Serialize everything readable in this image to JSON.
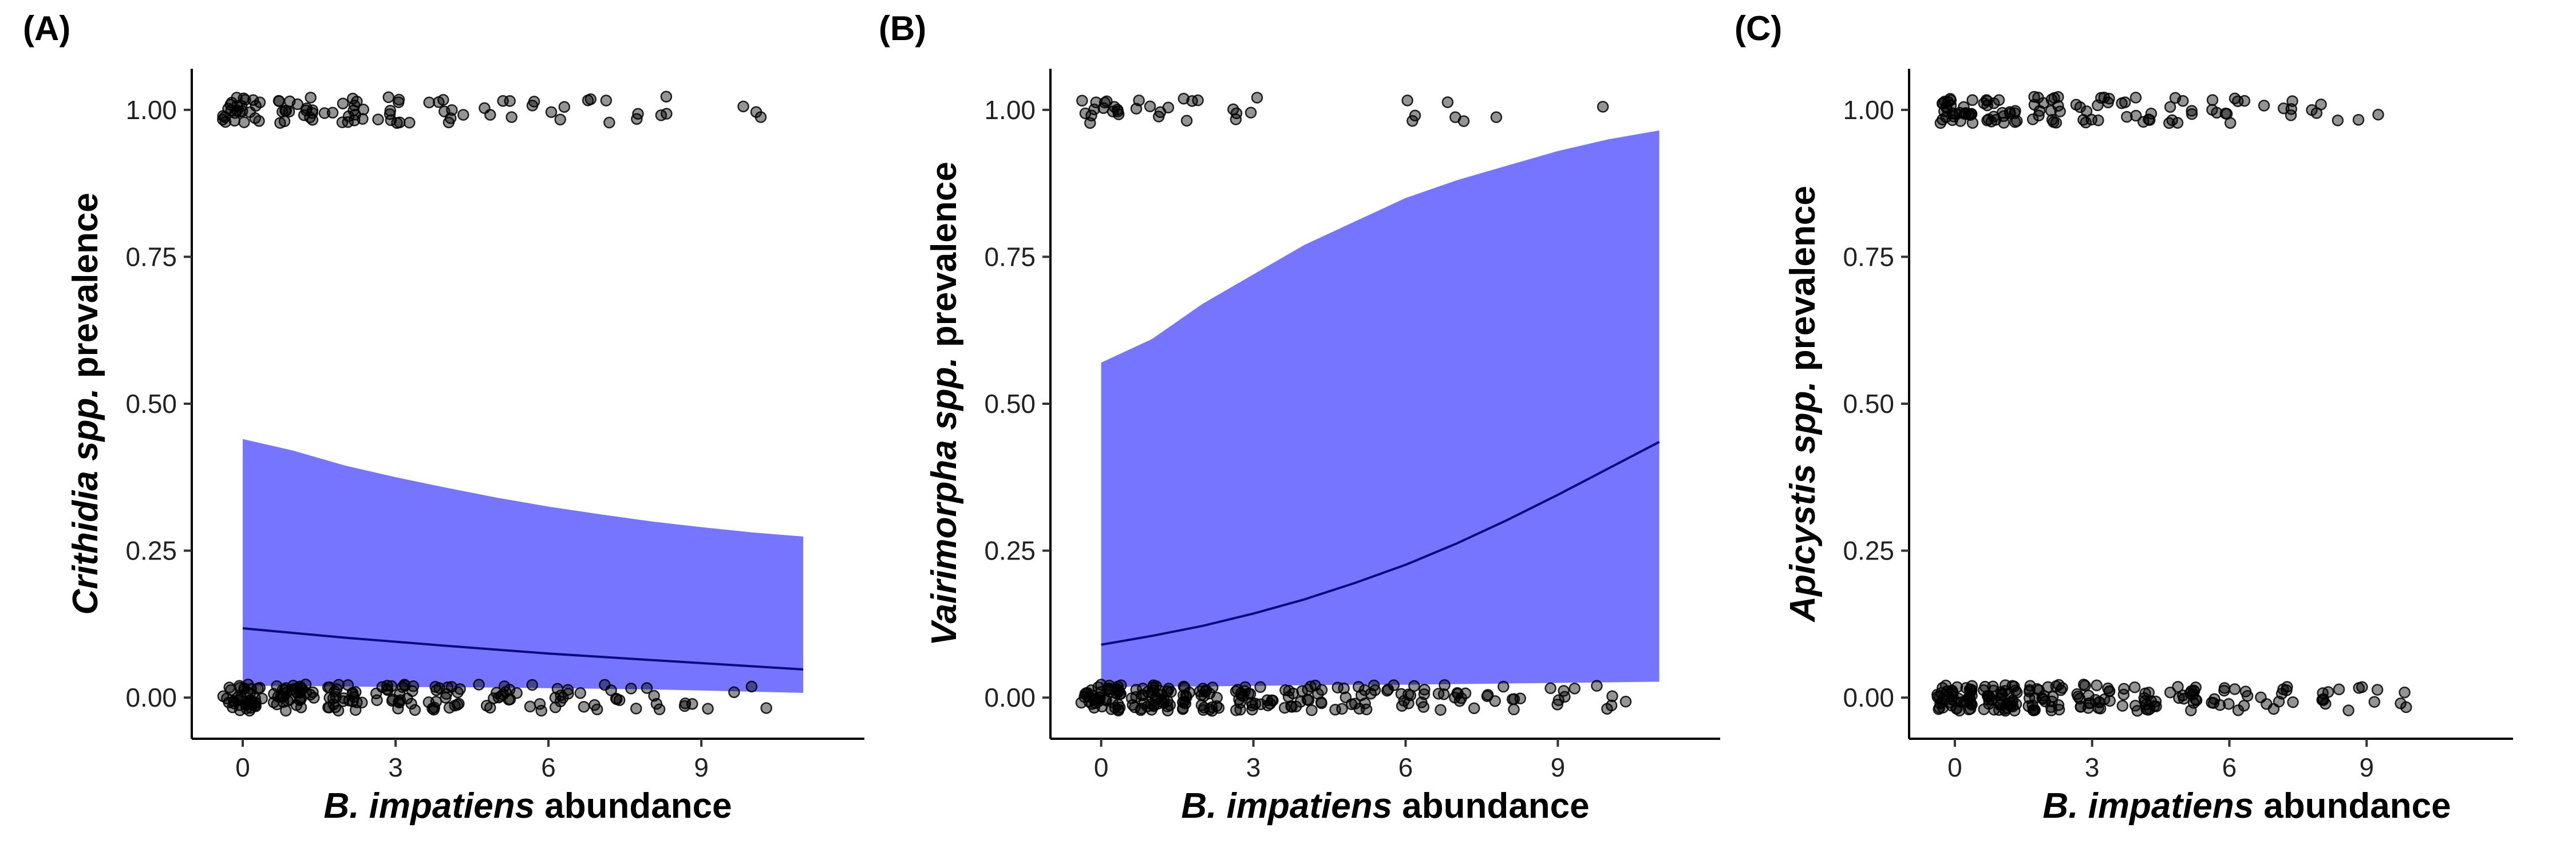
{
  "colors": {
    "ribbon": "#7575FF",
    "fit_line": "#0B0B7A",
    "points": "#000000"
  },
  "chart_data": [
    {
      "type": "scatter",
      "panel_label": "(A)",
      "xlabel": {
        "italic": "B. impatiens",
        "rest": " abundance"
      },
      "ylabel": {
        "italic": "Crithidia spp.",
        "rest": " prevalence"
      },
      "xlim": [
        -1,
        12.2
      ],
      "ylim": [
        -0.07,
        1.07
      ],
      "xticks": [
        0,
        3,
        6,
        9
      ],
      "xtick_labels": [
        "0",
        "3",
        "6",
        "9"
      ],
      "yticks": [
        0,
        0.25,
        0.5,
        0.75,
        1
      ],
      "ytick_labels": [
        "0.00",
        "0.25",
        "0.50",
        "0.75",
        "1.00"
      ],
      "fit": {
        "x": [
          0,
          2,
          4,
          6,
          8,
          11
        ],
        "y": [
          0.118,
          0.102,
          0.088,
          0.075,
          0.064,
          0.048
        ]
      },
      "ribbon": {
        "x": [
          0,
          1,
          2,
          3,
          4,
          5,
          6,
          7,
          8,
          9,
          10,
          11
        ],
        "lower": [
          0.02,
          0.02,
          0.019,
          0.018,
          0.018,
          0.017,
          0.016,
          0.015,
          0.014,
          0.012,
          0.01,
          0.008
        ],
        "upper": [
          0.44,
          0.42,
          0.395,
          0.375,
          0.357,
          0.34,
          0.325,
          0.312,
          0.3,
          0.29,
          0.281,
          0.274
        ]
      },
      "groups": [
        {
          "x": 0,
          "y": 0,
          "n": 40
        },
        {
          "x": 1,
          "y": 0,
          "n": 35
        },
        {
          "x": 2,
          "y": 0,
          "n": 25
        },
        {
          "x": 3,
          "y": 0,
          "n": 22
        },
        {
          "x": 4,
          "y": 0,
          "n": 18
        },
        {
          "x": 5,
          "y": 0,
          "n": 14
        },
        {
          "x": 6,
          "y": 0,
          "n": 12
        },
        {
          "x": 7,
          "y": 0,
          "n": 9
        },
        {
          "x": 8,
          "y": 0,
          "n": 6
        },
        {
          "x": 9,
          "y": 0,
          "n": 4
        },
        {
          "x": 10,
          "y": 0,
          "n": 3
        },
        {
          "x": 0,
          "y": 1,
          "n": 25
        },
        {
          "x": 1,
          "y": 1,
          "n": 18
        },
        {
          "x": 2,
          "y": 1,
          "n": 14
        },
        {
          "x": 3,
          "y": 1,
          "n": 10
        },
        {
          "x": 4,
          "y": 1,
          "n": 8
        },
        {
          "x": 5,
          "y": 1,
          "n": 5
        },
        {
          "x": 6,
          "y": 1,
          "n": 5
        },
        {
          "x": 7,
          "y": 1,
          "n": 4
        },
        {
          "x": 8,
          "y": 1,
          "n": 5
        },
        {
          "x": 10,
          "y": 1,
          "n": 3
        }
      ]
    },
    {
      "type": "scatter",
      "panel_label": "(B)",
      "xlabel": {
        "italic": "B. impatiens",
        "rest": " abundance"
      },
      "ylabel": {
        "italic": "Vairimorpha spp.",
        "rest": " prevalence"
      },
      "xlim": [
        -1,
        12.2
      ],
      "ylim": [
        -0.07,
        1.07
      ],
      "xticks": [
        0,
        3,
        6,
        9
      ],
      "xtick_labels": [
        "0",
        "3",
        "6",
        "9"
      ],
      "yticks": [
        0,
        0.25,
        0.5,
        0.75,
        1
      ],
      "ytick_labels": [
        "0.00",
        "0.25",
        "0.50",
        "0.75",
        "1.00"
      ],
      "fit": {
        "x": [
          0,
          1,
          2,
          3,
          4,
          5,
          6,
          7,
          8,
          9,
          10,
          11
        ],
        "y": [
          0.09,
          0.105,
          0.122,
          0.143,
          0.167,
          0.195,
          0.226,
          0.262,
          0.302,
          0.345,
          0.39,
          0.435
        ]
      },
      "ribbon": {
        "x": [
          0,
          1,
          2,
          3,
          4,
          5,
          6,
          7,
          8,
          9,
          10,
          11
        ],
        "lower": [
          0.018,
          0.019,
          0.019,
          0.02,
          0.021,
          0.022,
          0.022,
          0.023,
          0.024,
          0.025,
          0.026,
          0.027
        ],
        "upper": [
          0.57,
          0.61,
          0.67,
          0.72,
          0.77,
          0.81,
          0.85,
          0.88,
          0.905,
          0.93,
          0.95,
          0.965
        ]
      },
      "groups": [
        {
          "x": 0,
          "y": 0,
          "n": 45
        },
        {
          "x": 1,
          "y": 0,
          "n": 38
        },
        {
          "x": 2,
          "y": 0,
          "n": 28
        },
        {
          "x": 3,
          "y": 0,
          "n": 24
        },
        {
          "x": 4,
          "y": 0,
          "n": 20
        },
        {
          "x": 5,
          "y": 0,
          "n": 16
        },
        {
          "x": 6,
          "y": 0,
          "n": 14
        },
        {
          "x": 7,
          "y": 0,
          "n": 11
        },
        {
          "x": 8,
          "y": 0,
          "n": 8
        },
        {
          "x": 9,
          "y": 0,
          "n": 6
        },
        {
          "x": 10,
          "y": 0,
          "n": 5
        },
        {
          "x": 0,
          "y": 1,
          "n": 14
        },
        {
          "x": 1,
          "y": 1,
          "n": 6
        },
        {
          "x": 2,
          "y": 1,
          "n": 4
        },
        {
          "x": 3,
          "y": 1,
          "n": 5
        },
        {
          "x": 6,
          "y": 1,
          "n": 3
        },
        {
          "x": 7,
          "y": 1,
          "n": 3
        },
        {
          "x": 8,
          "y": 1,
          "n": 1
        },
        {
          "x": 10,
          "y": 1,
          "n": 1
        }
      ]
    },
    {
      "type": "scatter",
      "panel_label": "(C)",
      "xlabel": {
        "italic": "B. impatiens",
        "rest": " abundance"
      },
      "ylabel": {
        "italic": "Apicystis spp.",
        "rest": " prevalence"
      },
      "xlim": [
        -1,
        12.2
      ],
      "ylim": [
        -0.07,
        1.07
      ],
      "xticks": [
        0,
        3,
        6,
        9
      ],
      "xtick_labels": [
        "0",
        "3",
        "6",
        "9"
      ],
      "yticks": [
        0,
        0.25,
        0.5,
        0.75,
        1
      ],
      "ytick_labels": [
        "0.00",
        "0.25",
        "0.50",
        "0.75",
        "1.00"
      ],
      "groups": [
        {
          "x": 0,
          "y": 0,
          "n": 45
        },
        {
          "x": 1,
          "y": 0,
          "n": 38
        },
        {
          "x": 2,
          "y": 0,
          "n": 28
        },
        {
          "x": 3,
          "y": 0,
          "n": 22
        },
        {
          "x": 4,
          "y": 0,
          "n": 18
        },
        {
          "x": 5,
          "y": 0,
          "n": 15
        },
        {
          "x": 6,
          "y": 0,
          "n": 12
        },
        {
          "x": 7,
          "y": 0,
          "n": 9
        },
        {
          "x": 8,
          "y": 0,
          "n": 7
        },
        {
          "x": 9,
          "y": 0,
          "n": 5
        },
        {
          "x": 10,
          "y": 0,
          "n": 3
        },
        {
          "x": 0,
          "y": 1,
          "n": 28
        },
        {
          "x": 1,
          "y": 1,
          "n": 20
        },
        {
          "x": 2,
          "y": 1,
          "n": 16
        },
        {
          "x": 3,
          "y": 1,
          "n": 12
        },
        {
          "x": 4,
          "y": 1,
          "n": 9
        },
        {
          "x": 5,
          "y": 1,
          "n": 8
        },
        {
          "x": 6,
          "y": 1,
          "n": 9
        },
        {
          "x": 7,
          "y": 1,
          "n": 5
        },
        {
          "x": 8,
          "y": 1,
          "n": 4
        },
        {
          "x": 9,
          "y": 1,
          "n": 2
        }
      ]
    }
  ]
}
